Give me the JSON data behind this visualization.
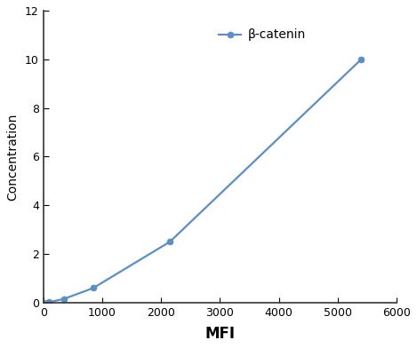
{
  "x": [
    0,
    100,
    350,
    850,
    2150,
    5400
  ],
  "y": [
    0.0,
    0.02,
    0.15,
    0.6,
    2.5,
    10.0
  ],
  "line_color": "#5b8ec4",
  "marker_color": "#5b8ec4",
  "marker_style": "o",
  "marker_size": 5,
  "line_width": 1.6,
  "xlabel": "MFI",
  "ylabel": "Concentration",
  "xlim": [
    0,
    6000
  ],
  "ylim": [
    0,
    12
  ],
  "xticks": [
    0,
    1000,
    2000,
    3000,
    4000,
    5000,
    6000
  ],
  "yticks": [
    0,
    2,
    4,
    6,
    8,
    10,
    12
  ],
  "legend_label": "β-catenin",
  "xlabel_fontsize": 12,
  "ylabel_fontsize": 10,
  "tick_fontsize": 9,
  "legend_fontsize": 10,
  "background_color": "#ffffff"
}
